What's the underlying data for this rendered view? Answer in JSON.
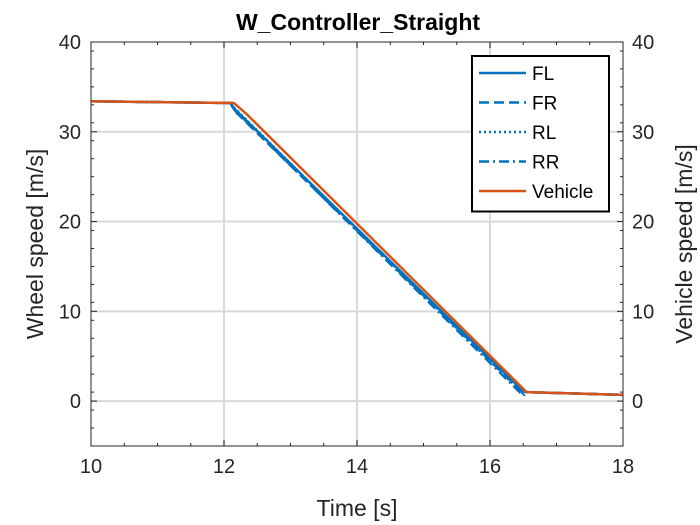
{
  "chart_data": {
    "type": "line",
    "title": "W_Controller_Straight",
    "xlabel": "Time [s]",
    "ylabel": "Wheel speed [m/s]",
    "ylabel_right": "Vehicle speed [m/s]",
    "xlim": [
      10,
      18
    ],
    "ylim": [
      -5,
      40
    ],
    "ylim_right": [
      -5,
      40
    ],
    "xticks": [
      10,
      12,
      14,
      16,
      18
    ],
    "yticks": [
      0,
      10,
      20,
      30,
      40
    ],
    "yticks_right": [
      0,
      10,
      20,
      30,
      40
    ],
    "grid": true,
    "legend_position": "top-right",
    "series": [
      {
        "name": "FL",
        "color": "#0072BD",
        "style": "solid",
        "x": [
          10,
          12.1,
          12.15,
          16.5,
          16.55,
          18
        ],
        "y": [
          33.4,
          33.2,
          32.6,
          1.1,
          1.0,
          0.7
        ]
      },
      {
        "name": "FR",
        "color": "#0072BD",
        "style": "dashed",
        "x": [
          10,
          12.1,
          12.15,
          16.5,
          16.55,
          18
        ],
        "y": [
          33.4,
          33.2,
          32.4,
          0.9,
          1.0,
          0.7
        ]
      },
      {
        "name": "RL",
        "color": "#0072BD",
        "style": "dotted",
        "x": [
          10,
          12.1,
          12.15,
          16.5,
          16.55,
          18
        ],
        "y": [
          33.4,
          33.2,
          32.7,
          0.8,
          1.0,
          0.7
        ]
      },
      {
        "name": "RR",
        "color": "#0072BD",
        "style": "dashdot",
        "x": [
          10,
          12.1,
          12.15,
          16.5,
          16.55,
          18
        ],
        "y": [
          33.4,
          33.2,
          32.5,
          0.6,
          1.0,
          0.7
        ]
      },
      {
        "name": "Vehicle",
        "color": "#D95319",
        "style": "solid",
        "x": [
          10,
          12.15,
          12.35,
          16.55,
          18
        ],
        "y": [
          33.4,
          33.2,
          31.9,
          1.0,
          0.7
        ]
      }
    ]
  }
}
